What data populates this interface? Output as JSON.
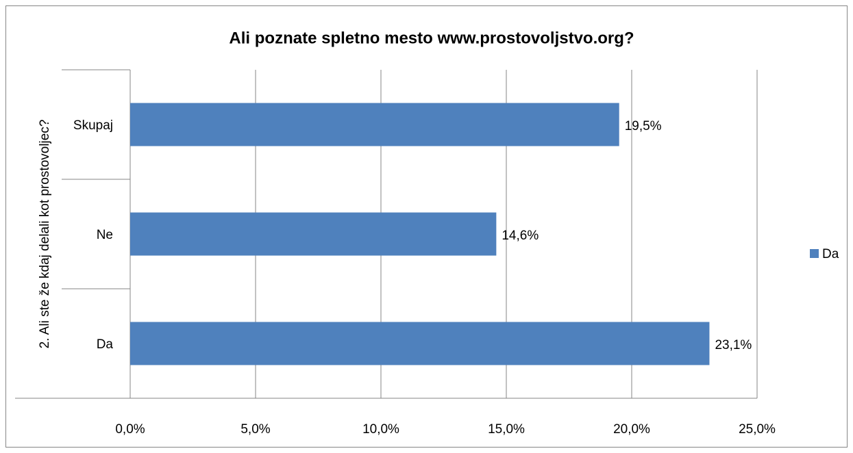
{
  "chart_data": {
    "type": "hbar",
    "title": "Ali poznate spletno mesto www.prostovoljstvo.org?",
    "y_label": "2. Ali ste že kdaj delali kot prostovoljec?",
    "categories": [
      "Da",
      "Ne",
      "Skupaj"
    ],
    "series": [
      {
        "name": "Da",
        "color": "#4f81bd",
        "values": [
          23.1,
          14.6,
          19.5
        ],
        "value_labels": [
          "23,1%",
          "14,6%",
          "19,5%"
        ]
      }
    ],
    "xlim": [
      0,
      25
    ],
    "xticks": [
      {
        "value": 0,
        "label": "0,0%"
      },
      {
        "value": 5,
        "label": "5,0%"
      },
      {
        "value": 10,
        "label": "10,0%"
      },
      {
        "value": 15,
        "label": "15,0%"
      },
      {
        "value": 20,
        "label": "20,0%"
      },
      {
        "value": 25,
        "label": "25,0%"
      }
    ],
    "grid": true,
    "legend": "right"
  }
}
